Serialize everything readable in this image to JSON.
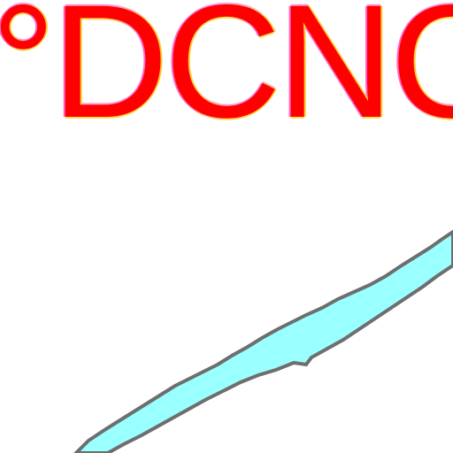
{
  "map": {
    "place_label": "°DCNC",
    "colors": {
      "label": "#ff0000",
      "label_halo": "#ffcc33",
      "water_fill": "#99ffff",
      "water_outline": "#6e6e6e",
      "background": "#ffffff"
    },
    "features": [
      "water-body"
    ]
  }
}
